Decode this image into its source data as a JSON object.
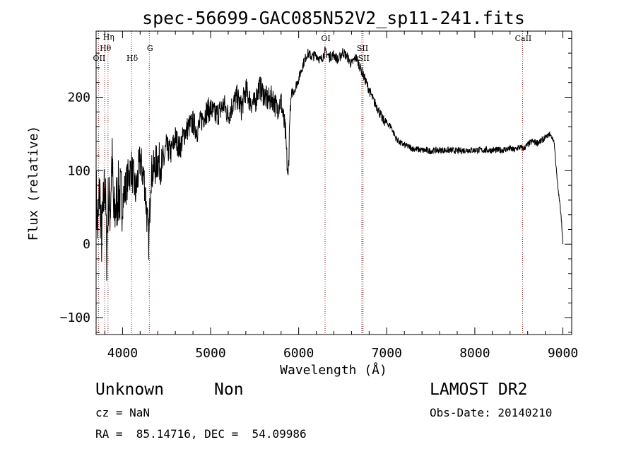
{
  "footer": {
    "class_label": "Unknown",
    "subclass_label": "Non",
    "survey": "LAMOST DR2",
    "redshift": "cz = NaN",
    "obs_date": "Obs-Date: 20140210",
    "coords": "RA =  85.14716, DEC =  54.09986"
  },
  "colors": {
    "spectrum": "#000000",
    "line_marker": "#8b1a1a",
    "axis": "#000000"
  },
  "chart_data": {
    "type": "line",
    "title": "spec-56699-GAC085N52V2_sp11-241.fits",
    "xlabel": "Wavelength (Å)",
    "ylabel": "Flux (relative)",
    "xlim": [
      3700,
      9100
    ],
    "ylim": [
      -123,
      290
    ],
    "xticks": [
      4000,
      5000,
      6000,
      7000,
      8000,
      9000
    ],
    "yticks": [
      -100,
      0,
      100,
      200
    ],
    "grid": false,
    "legend": "none",
    "lines": [
      {
        "label": "OII",
        "x": 3727
      },
      {
        "label": "Hθ",
        "x": 3798
      },
      {
        "label": "Hη",
        "x": 3835
      },
      {
        "label": "Hδ",
        "x": 4102
      },
      {
        "label": "G",
        "x": 4304
      },
      {
        "label": "OI",
        "x": 6300
      },
      {
        "label": "SII",
        "x": 6717
      },
      {
        "label": "SII",
        "x": 6731
      },
      {
        "label": "CaII",
        "x": 8542
      }
    ],
    "series": [
      {
        "x": [
          3700,
          3720,
          3740,
          3760,
          3780,
          3800,
          3820,
          3840,
          3860,
          3880,
          3900,
          3950,
          4000,
          4050,
          4100,
          4150,
          4200,
          4250,
          4300,
          4320,
          4350,
          4400,
          4450,
          4500,
          4550,
          4600,
          4650,
          4700,
          4750,
          4800,
          4850,
          4900,
          4950,
          5000,
          5050,
          5100,
          5150,
          5200,
          5250,
          5300,
          5350,
          5400,
          5450,
          5500,
          5550,
          5600,
          5650,
          5700,
          5750,
          5800,
          5850,
          5880,
          5900,
          5920,
          5950,
          6000,
          6050,
          6100,
          6150,
          6200,
          6250,
          6300,
          6350,
          6400,
          6450,
          6500,
          6550,
          6600,
          6650,
          6700,
          6750,
          6800,
          6850,
          6900,
          6950,
          7000,
          7050,
          7100,
          7150,
          7200,
          7300,
          7400,
          7500,
          7600,
          7700,
          7800,
          7900,
          8000,
          8100,
          8200,
          8300,
          8400,
          8450,
          8500,
          8550,
          8600,
          8650,
          8700,
          8750,
          8800,
          8850,
          8900,
          8920,
          8940,
          8960,
          8980,
          9000
        ],
        "y": [
          70,
          15,
          80,
          5,
          40,
          95,
          -10,
          65,
          45,
          120,
          35,
          70,
          60,
          85,
          105,
          70,
          115,
          85,
          0,
          95,
          100,
          115,
          105,
          130,
          125,
          145,
          130,
          150,
          160,
          165,
          155,
          170,
          180,
          185,
          175,
          180,
          190,
          175,
          190,
          200,
          185,
          210,
          195,
          190,
          215,
          205,
          195,
          200,
          185,
          195,
          150,
          85,
          175,
          205,
          210,
          225,
          245,
          260,
          255,
          258,
          250,
          262,
          255,
          258,
          250,
          262,
          255,
          245,
          255,
          240,
          225,
          210,
          195,
          185,
          170,
          165,
          160,
          145,
          138,
          135,
          130,
          128,
          127,
          128,
          128,
          127,
          128,
          128,
          128,
          128,
          128,
          130,
          128,
          132,
          130,
          135,
          140,
          138,
          140,
          145,
          150,
          140,
          110,
          80,
          60,
          40,
          0
        ]
      }
    ]
  }
}
